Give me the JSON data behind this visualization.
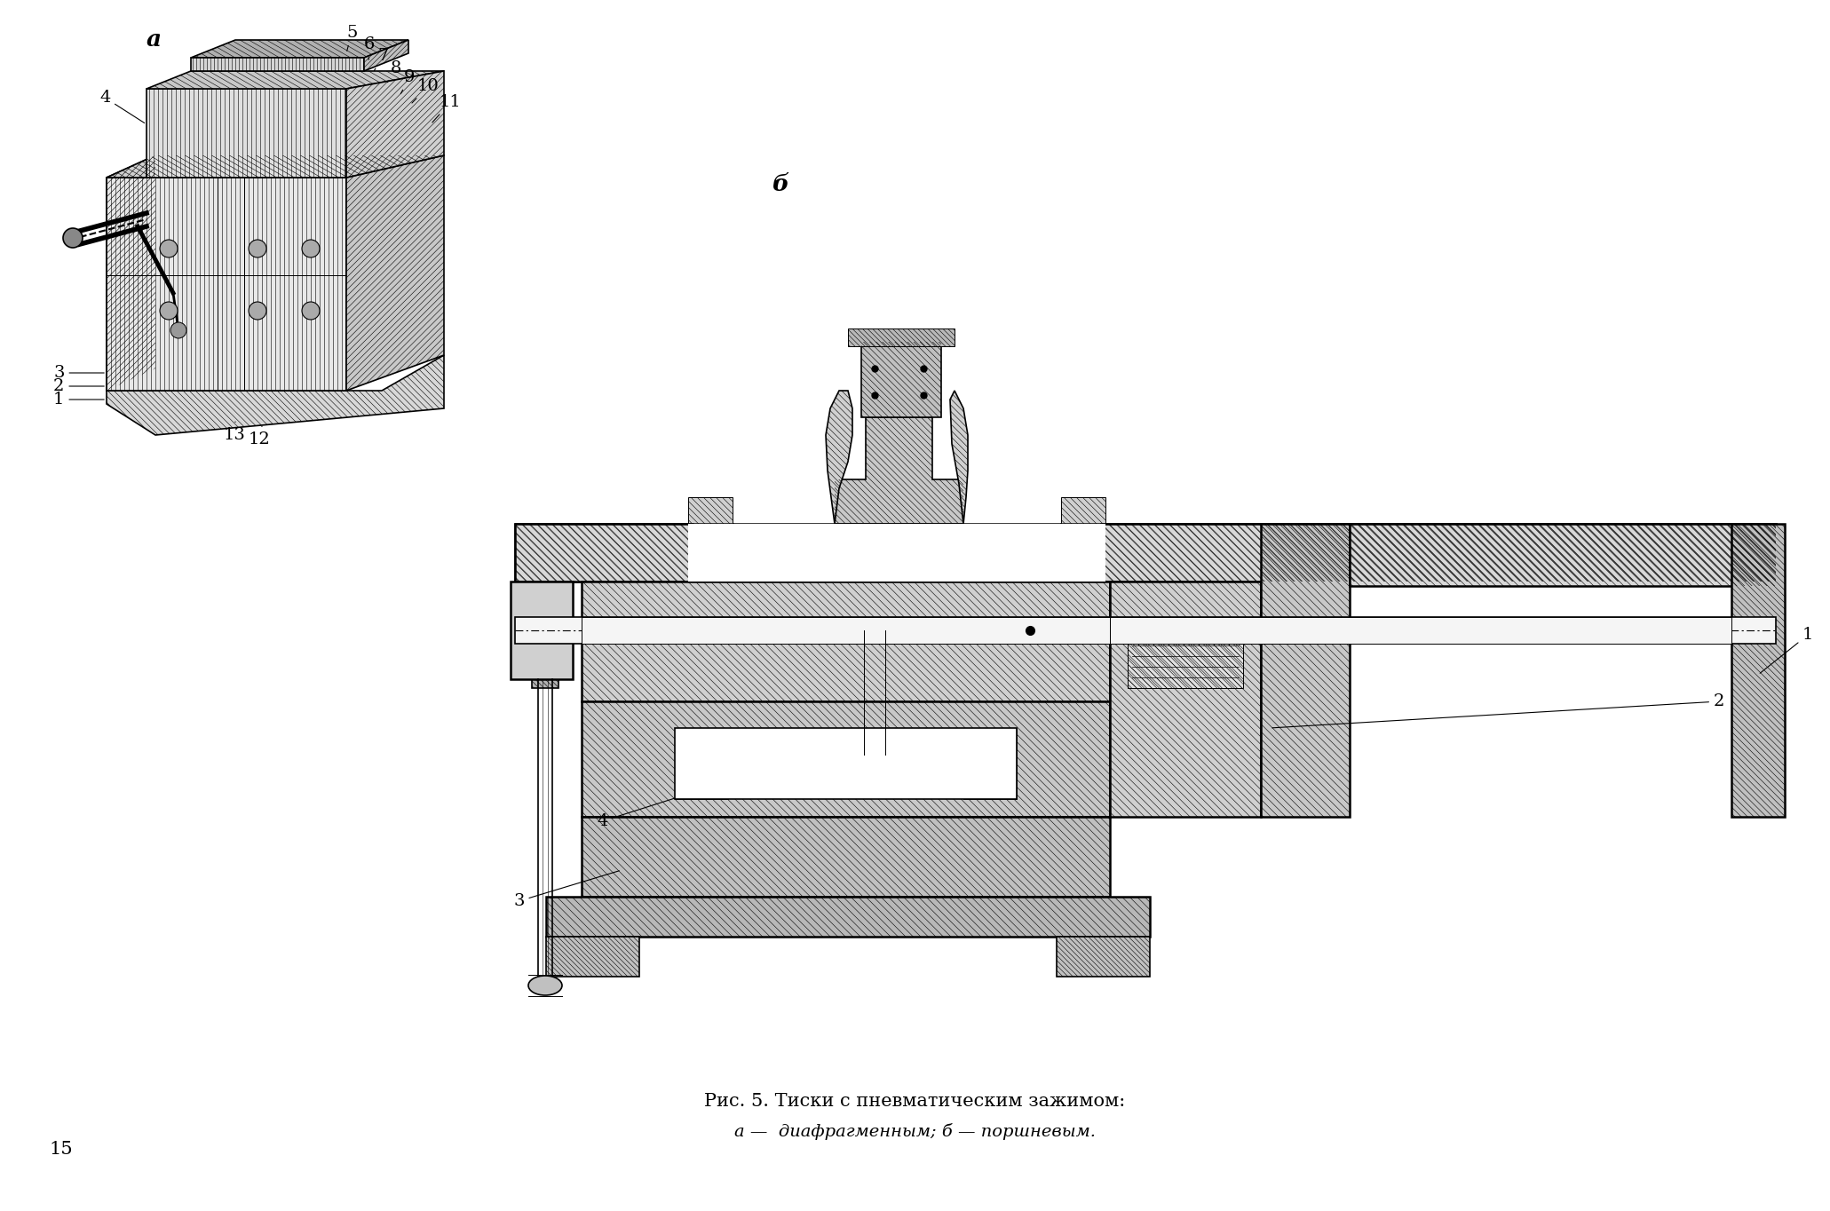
{
  "background_color": "#ffffff",
  "fig_width": 20.61,
  "fig_height": 13.64,
  "dpi": 100,
  "caption_line1": "Рис. 5. Тиски с пневматическим зажимом:",
  "caption_line2": "а —  диафрагменным; б — поршневым.",
  "page_number": "15",
  "label_a": "а",
  "label_b": "б",
  "font_size_caption": 15,
  "font_size_label": 19,
  "font_size_part": 14,
  "font_size_page": 15
}
